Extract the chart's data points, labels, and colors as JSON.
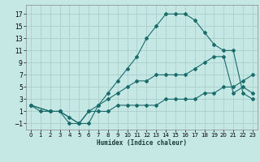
{
  "xlabel": "Humidex (Indice chaleur)",
  "bg_color": "#c5e8e5",
  "grid_color": "#a8d0cc",
  "line_color": "#1a6b6b",
  "xlim": [
    -0.5,
    23.5
  ],
  "ylim": [
    -2,
    18.5
  ],
  "xticks": [
    0,
    1,
    2,
    3,
    4,
    5,
    6,
    7,
    8,
    9,
    10,
    11,
    12,
    13,
    14,
    15,
    16,
    17,
    18,
    19,
    20,
    21,
    22,
    23
  ],
  "yticks": [
    -1,
    1,
    3,
    5,
    7,
    9,
    11,
    13,
    15,
    17
  ],
  "line1_x": [
    0,
    1,
    2,
    3,
    4,
    5,
    6,
    7,
    8,
    9,
    10,
    11,
    12,
    13,
    14,
    15,
    16,
    17,
    18,
    19,
    20,
    21,
    22,
    23
  ],
  "line1_y": [
    2,
    1,
    1,
    1,
    0,
    -1,
    -1,
    2,
    4,
    6,
    8,
    10,
    13,
    15,
    17,
    17,
    17,
    16,
    14,
    12,
    11,
    11,
    4,
    3
  ],
  "line2_x": [
    0,
    2,
    3,
    4,
    5,
    6,
    7,
    8,
    9,
    10,
    11,
    12,
    13,
    14,
    15,
    16,
    17,
    18,
    19,
    20,
    21,
    22,
    23
  ],
  "line2_y": [
    2,
    1,
    1,
    -1,
    -1,
    1,
    2,
    3,
    4,
    5,
    6,
    6,
    7,
    7,
    7,
    7,
    8,
    9,
    10,
    10,
    4,
    5,
    4
  ],
  "line3_x": [
    0,
    2,
    3,
    5,
    6,
    7,
    8,
    9,
    10,
    11,
    12,
    13,
    14,
    15,
    16,
    17,
    18,
    19,
    20,
    21,
    22,
    23
  ],
  "line3_y": [
    2,
    1,
    1,
    -1,
    1,
    1,
    1,
    2,
    2,
    2,
    2,
    2,
    3,
    3,
    3,
    3,
    4,
    4,
    5,
    5,
    6,
    7
  ]
}
